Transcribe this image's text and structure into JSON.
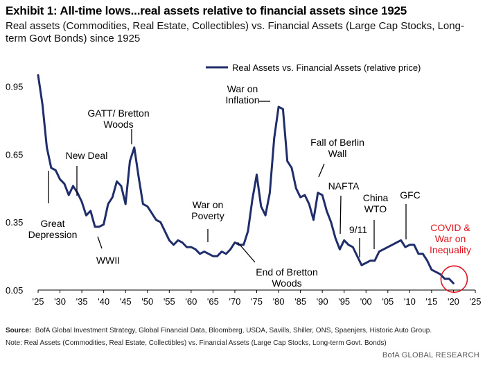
{
  "header": {
    "title": "Exhibit 1: All-time lows...real assets relative to financial assets since 1925",
    "subtitle": "Real assets (Commodities, Real Estate, Collectibles) vs. Financial Assets (Large Cap Stocks, Long-term Govt Bonds) since 1925"
  },
  "footer": {
    "source_label": "Source:",
    "source_text": "BofA Global Investment Strategy, Global Financial Data, Bloomberg, USDA, Savills, Shiller, ONS, Spaenjers, Historic Auto Group.",
    "note": "Note: Real Assets (Commodities,  Real Estate, Collectibles) vs. Financial Assets (Large Cap Stocks, Long-term Govt. Bonds)",
    "brand": "BofA GLOBAL RESEARCH"
  },
  "colors": {
    "line": "#1f2d6b",
    "highlight": "#e0141e",
    "axis": "#000000",
    "text": "#000000"
  },
  "chart_data": {
    "type": "line",
    "title": "Exhibit 1: All-time lows...real assets relative to financial assets since 1925",
    "xlabel": "",
    "ylabel": "",
    "xlim": [
      1925,
      2025
    ],
    "ylim": [
      0.05,
      1.05
    ],
    "grid": false,
    "legend": {
      "position": "top-right",
      "entries": [
        "Real Assets vs. Financial Assets (relative price)"
      ]
    },
    "x_ticks": [
      1925,
      1930,
      1935,
      1940,
      1945,
      1950,
      1955,
      1960,
      1965,
      1970,
      1975,
      1980,
      1985,
      1990,
      1995,
      2000,
      2005,
      2010,
      2015,
      2020,
      2025
    ],
    "x_tick_labels": [
      "'25",
      "'30",
      "'35",
      "'40",
      "'45",
      "'50",
      "'55",
      "'60",
      "'65",
      "'70",
      "'75",
      "'80",
      "'85",
      "'90",
      "'95",
      "'00",
      "'05",
      "'10",
      "'15",
      "'20",
      "'25"
    ],
    "y_ticks": [
      0.05,
      0.35,
      0.65,
      0.95
    ],
    "y_tick_labels": [
      "0.05",
      "0.35",
      "0.65",
      "0.95"
    ],
    "series": [
      {
        "name": "Real Assets vs. Financial Assets (relative price)",
        "x": [
          1925,
          1926,
          1927,
          1928,
          1929,
          1930,
          1931,
          1932,
          1933,
          1934,
          1935,
          1936,
          1937,
          1938,
          1939,
          1940,
          1941,
          1942,
          1943,
          1944,
          1945,
          1946,
          1947,
          1948,
          1949,
          1950,
          1951,
          1952,
          1953,
          1954,
          1955,
          1956,
          1957,
          1958,
          1959,
          1960,
          1961,
          1962,
          1963,
          1964,
          1965,
          1966,
          1967,
          1968,
          1969,
          1970,
          1971,
          1972,
          1973,
          1974,
          1975,
          1976,
          1977,
          1978,
          1979,
          1980,
          1981,
          1982,
          1983,
          1984,
          1985,
          1986,
          1987,
          1988,
          1989,
          1990,
          1991,
          1992,
          1993,
          1994,
          1995,
          1996,
          1997,
          1998,
          1999,
          2000,
          2001,
          2002,
          2003,
          2004,
          2005,
          2006,
          2007,
          2008,
          2009,
          2010,
          2011,
          2012,
          2013,
          2014,
          2015,
          2016,
          2017,
          2018,
          2019,
          2020
        ],
        "values": [
          1.0,
          0.87,
          0.68,
          0.59,
          0.58,
          0.54,
          0.52,
          0.47,
          0.51,
          0.48,
          0.44,
          0.38,
          0.4,
          0.33,
          0.33,
          0.34,
          0.43,
          0.46,
          0.53,
          0.51,
          0.43,
          0.62,
          0.68,
          0.55,
          0.43,
          0.42,
          0.39,
          0.36,
          0.35,
          0.31,
          0.27,
          0.25,
          0.27,
          0.26,
          0.24,
          0.24,
          0.23,
          0.21,
          0.22,
          0.21,
          0.2,
          0.2,
          0.22,
          0.21,
          0.23,
          0.26,
          0.25,
          0.25,
          0.31,
          0.45,
          0.56,
          0.42,
          0.38,
          0.48,
          0.72,
          0.86,
          0.85,
          0.62,
          0.59,
          0.5,
          0.46,
          0.47,
          0.43,
          0.36,
          0.48,
          0.47,
          0.4,
          0.35,
          0.28,
          0.23,
          0.27,
          0.25,
          0.24,
          0.2,
          0.16,
          0.17,
          0.18,
          0.18,
          0.22,
          0.23,
          0.24,
          0.25,
          0.26,
          0.27,
          0.24,
          0.25,
          0.25,
          0.21,
          0.21,
          0.18,
          0.14,
          0.13,
          0.12,
          0.1,
          0.1,
          0.08
        ]
      }
    ],
    "annotations": [
      {
        "lines": [
          "Great",
          "Depression"
        ],
        "x": 1928,
        "y": 0.52,
        "color": "#000000"
      },
      {
        "lines": [
          "New Deal"
        ],
        "x": 1933,
        "y": 0.5,
        "color": "#000000"
      },
      {
        "lines": [
          "WWII"
        ],
        "x": 1943,
        "y": 0.34,
        "color": "#000000"
      },
      {
        "lines": [
          "GATT/ Bretton",
          "Woods"
        ],
        "x": 1947,
        "y": 0.67,
        "color": "#000000"
      },
      {
        "lines": [
          "War on",
          "Poverty"
        ],
        "x": 1965,
        "y": 0.23,
        "color": "#000000"
      },
      {
        "lines": [
          "War on",
          "Inflation"
        ],
        "x": 1980,
        "y": 0.86,
        "color": "#000000"
      },
      {
        "lines": [
          "End of Bretton",
          "Woods"
        ],
        "x": 1971,
        "y": 0.26,
        "color": "#000000"
      },
      {
        "lines": [
          "Fall of Berlin",
          "Wall"
        ],
        "x": 1989,
        "y": 0.49,
        "color": "#000000"
      },
      {
        "lines": [
          "NAFTA"
        ],
        "x": 1994,
        "y": 0.28,
        "color": "#000000"
      },
      {
        "lines": [
          "9/11"
        ],
        "x": 2001,
        "y": 0.19,
        "color": "#000000"
      },
      {
        "lines": [
          "China",
          "WTO"
        ],
        "x": 2002,
        "y": 0.22,
        "color": "#000000"
      },
      {
        "lines": [
          "GFC"
        ],
        "x": 2008,
        "y": 0.27,
        "color": "#000000"
      },
      {
        "lines": [
          "COVID &",
          "War on",
          "Inequality"
        ],
        "x": 2020,
        "y": 0.08,
        "color": "#e0141e"
      }
    ]
  }
}
